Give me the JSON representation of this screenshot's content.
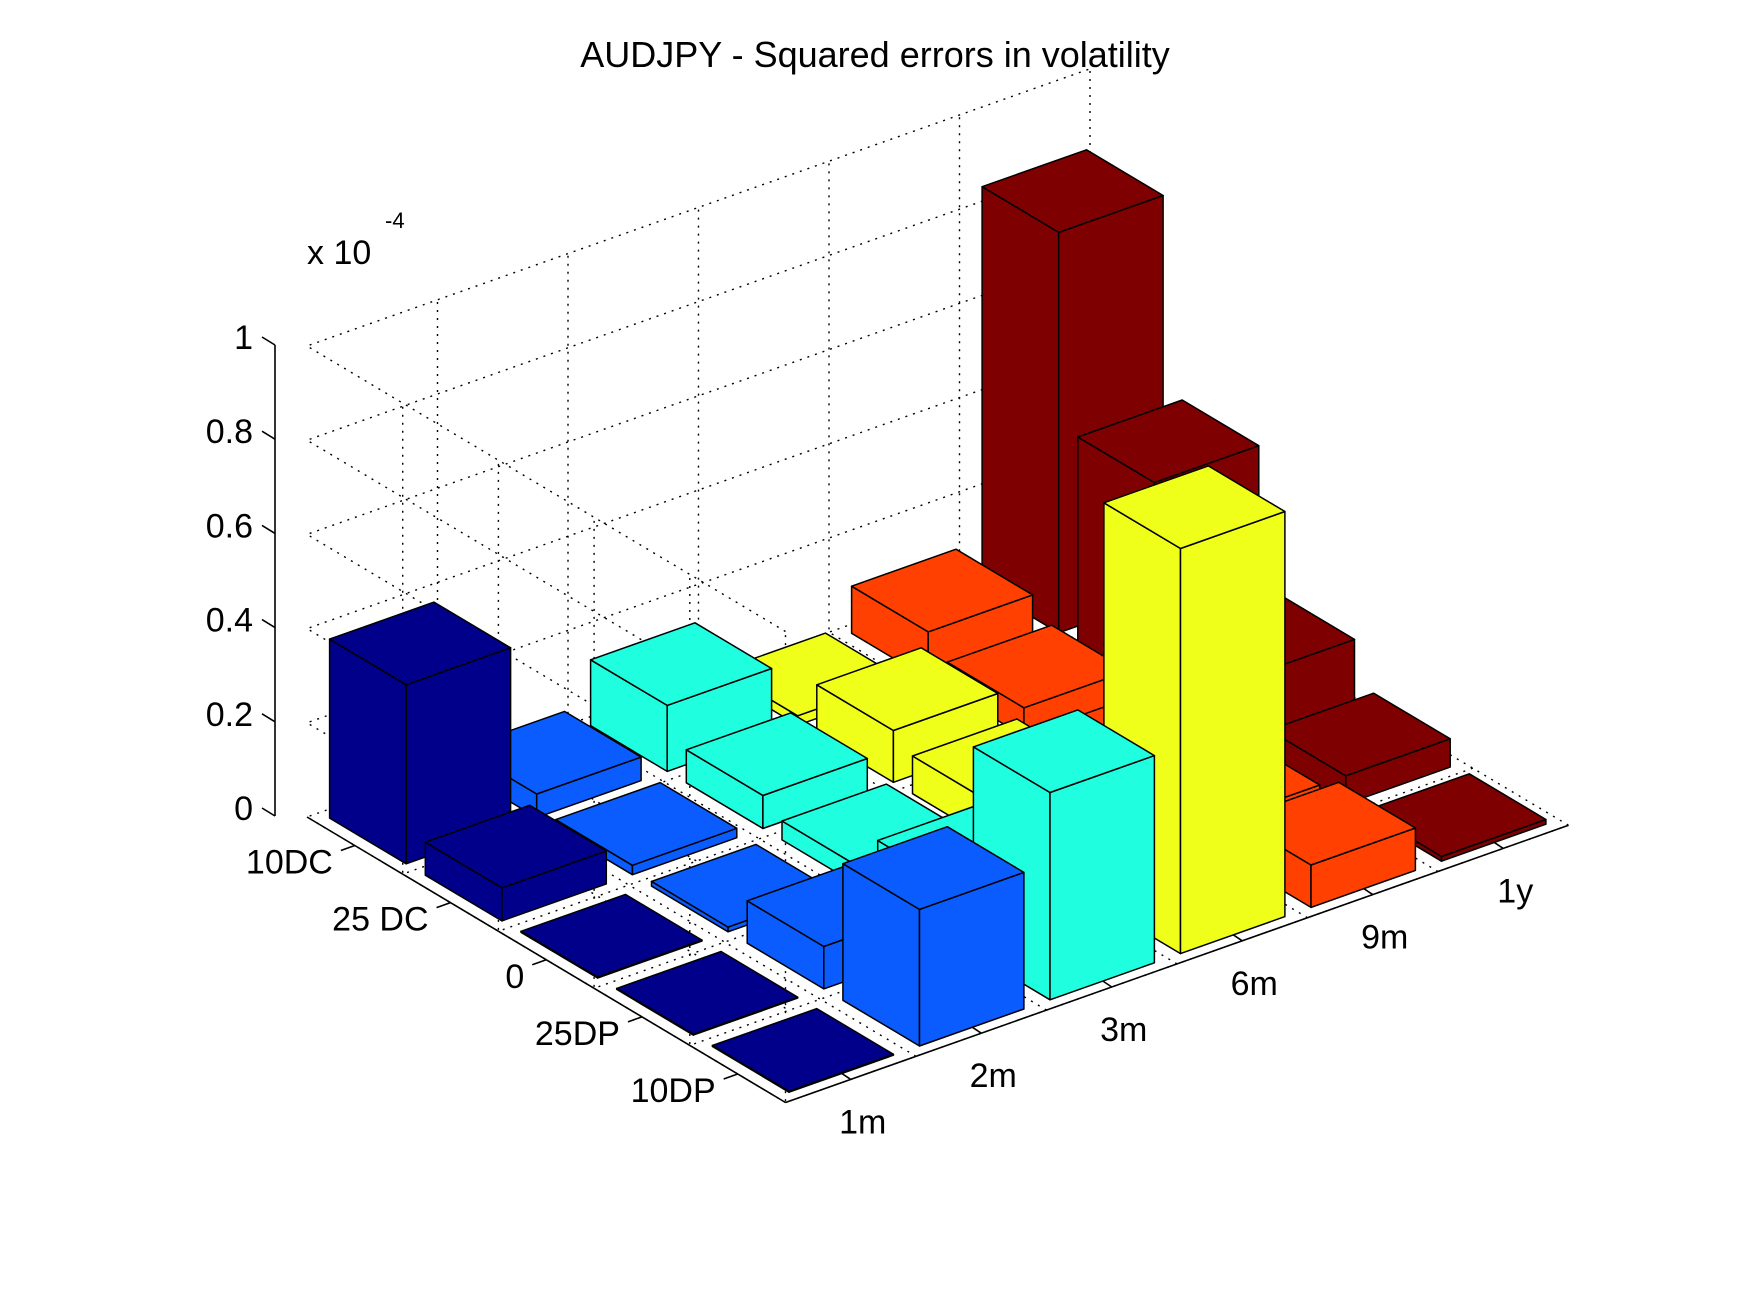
{
  "chart_data": {
    "type": "bar3d",
    "title": "AUDJPY - Squared errors in volatility",
    "exponent_label": "x 10",
    "exponent_power": "-4",
    "zlim": [
      0,
      1
    ],
    "z_ticks": [
      "0",
      "0.2",
      "0.4",
      "0.6",
      "0.8",
      "1"
    ],
    "x_categories": [
      "1m",
      "2m",
      "3m",
      "6m",
      "9m",
      "1y"
    ],
    "y_categories": [
      "10DC",
      "25 DC",
      "0",
      "25DP",
      "10DP"
    ],
    "grid": true,
    "colors": [
      "#00008b",
      "#0a5cff",
      "#1fffdf",
      "#f0ff1a",
      "#ff4000",
      "#7f0000"
    ],
    "values": [
      [
        0.38,
        0.05,
        0.14,
        0.02,
        0.1,
        0.85
      ],
      [
        0.07,
        0.02,
        0.07,
        0.11,
        0.06,
        0.44
      ],
      [
        0.0,
        0.01,
        0.04,
        0.08,
        0.04,
        0.15
      ],
      [
        0.0,
        0.09,
        0.12,
        0.11,
        0.06,
        0.06
      ],
      [
        0.0,
        0.29,
        0.44,
        0.86,
        0.09,
        0.01
      ]
    ]
  }
}
